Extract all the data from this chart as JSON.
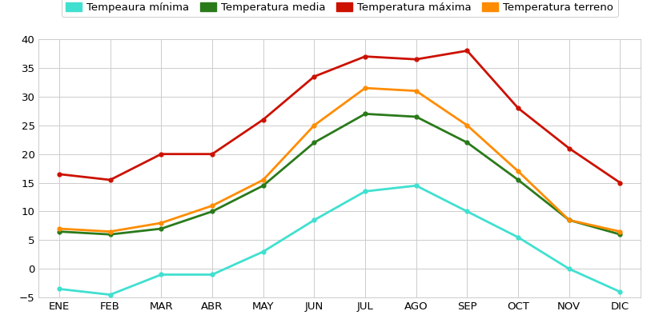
{
  "months": [
    "ENE",
    "FEB",
    "MAR",
    "ABR",
    "MAY",
    "JUN",
    "JUL",
    "AGO",
    "SEP",
    "OCT",
    "NOV",
    "DIC"
  ],
  "temp_min": [
    -3.5,
    -4.5,
    -1.0,
    -1.0,
    3.0,
    8.5,
    13.5,
    14.5,
    10.0,
    5.5,
    0.0,
    -4.0
  ],
  "temp_media": [
    6.5,
    6.0,
    7.0,
    10.0,
    14.5,
    22.0,
    27.0,
    26.5,
    22.0,
    15.5,
    8.5,
    6.0
  ],
  "temp_max": [
    16.5,
    15.5,
    20.0,
    20.0,
    26.0,
    33.5,
    37.0,
    36.5,
    38.0,
    28.0,
    21.0,
    15.0
  ],
  "temp_terreno": [
    7.0,
    6.5,
    8.0,
    11.0,
    15.5,
    25.0,
    31.5,
    31.0,
    25.0,
    17.0,
    8.5,
    6.5
  ],
  "colors": {
    "min": "#40E0D0",
    "media": "#2A7A1A",
    "max": "#CC1100",
    "terreno": "#FF8C00"
  },
  "legend_labels": [
    "Tempeaura mínima",
    "Temperatura media",
    "Temperatura máxima",
    "Temperatura terreno"
  ],
  "ylim": [
    -5,
    40
  ],
  "yticks": [
    -5,
    0,
    5,
    10,
    15,
    20,
    25,
    30,
    35,
    40
  ],
  "background_color": "#FFFFFF",
  "grid_color": "#CCCCCC",
  "line_width": 2.0,
  "legend_fontsize": 9.5,
  "tick_fontsize": 9.5
}
